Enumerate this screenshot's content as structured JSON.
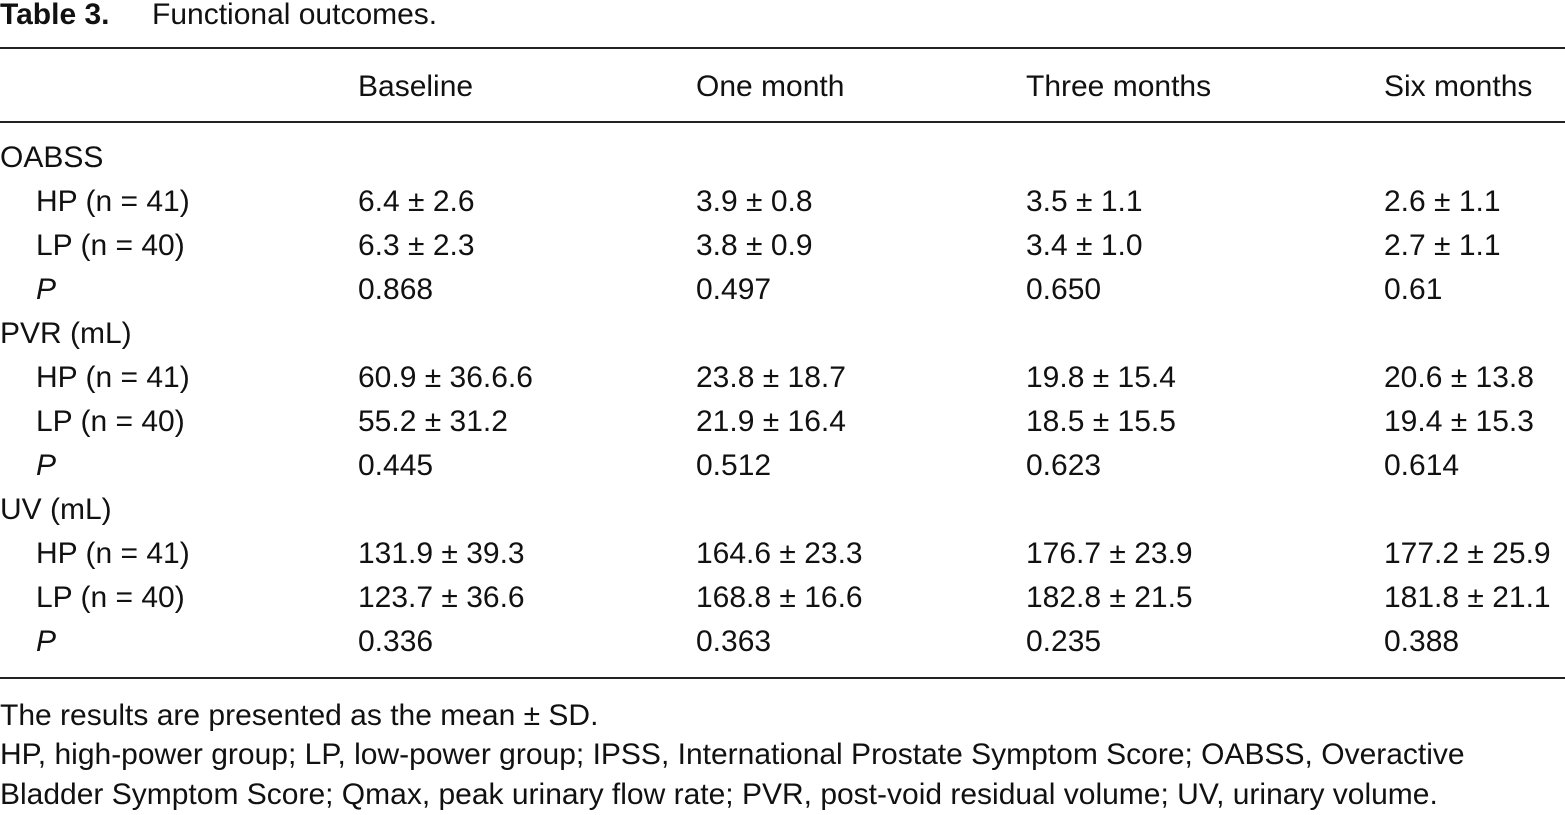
{
  "caption": {
    "label": "Table 3.",
    "title": "Functional outcomes."
  },
  "table": {
    "header": [
      "Baseline",
      "One month",
      "Three months",
      "Six months"
    ],
    "sections": [
      {
        "label": "OABSS",
        "rows": [
          {
            "label": "HP (n = 41)",
            "cells": [
              "6.4 ± 2.6",
              "3.9 ± 0.8",
              "3.5 ± 1.1",
              "2.6 ± 1.1"
            ]
          },
          {
            "label": "LP (n = 40)",
            "cells": [
              "6.3 ± 2.3",
              "3.8 ± 0.9",
              "3.4 ± 1.0",
              "2.7 ± 1.1"
            ]
          },
          {
            "label": "P",
            "cells": [
              "0.868",
              "0.497",
              "0.650",
              "0.61"
            ]
          }
        ]
      },
      {
        "label": "PVR (mL)",
        "rows": [
          {
            "label": "HP (n = 41)",
            "cells": [
              "60.9 ± 36.6.6",
              "23.8 ± 18.7",
              "19.8 ± 15.4",
              "20.6 ± 13.8"
            ]
          },
          {
            "label": "LP (n = 40)",
            "cells": [
              "55.2 ± 31.2",
              "21.9 ± 16.4",
              "18.5 ± 15.5",
              "19.4 ± 15.3"
            ]
          },
          {
            "label": "P",
            "cells": [
              "0.445",
              "0.512",
              "0.623",
              "0.614"
            ]
          }
        ]
      },
      {
        "label": "UV (mL)",
        "rows": [
          {
            "label": "HP (n = 41)",
            "cells": [
              "131.9 ± 39.3",
              "164.6 ± 23.3",
              "176.7 ± 23.9",
              "177.2 ± 25.9"
            ]
          },
          {
            "label": "LP (n = 40)",
            "cells": [
              "123.7 ± 36.6",
              "168.8 ± 16.6",
              "182.8 ± 21.5",
              "181.8 ± 21.1"
            ]
          },
          {
            "label": "P",
            "cells": [
              "0.336",
              "0.363",
              "0.235",
              "0.388"
            ]
          }
        ]
      }
    ]
  },
  "footnotes": [
    "The results are presented as the mean ± SD.",
    "HP, high-power group; LP, low-power group; IPSS, International Prostate Symptom Score; OABSS, Overactive Bladder Symptom Score; Qmax, peak urinary flow rate; PVR, post-void residual volume; UV, urinary volume."
  ]
}
